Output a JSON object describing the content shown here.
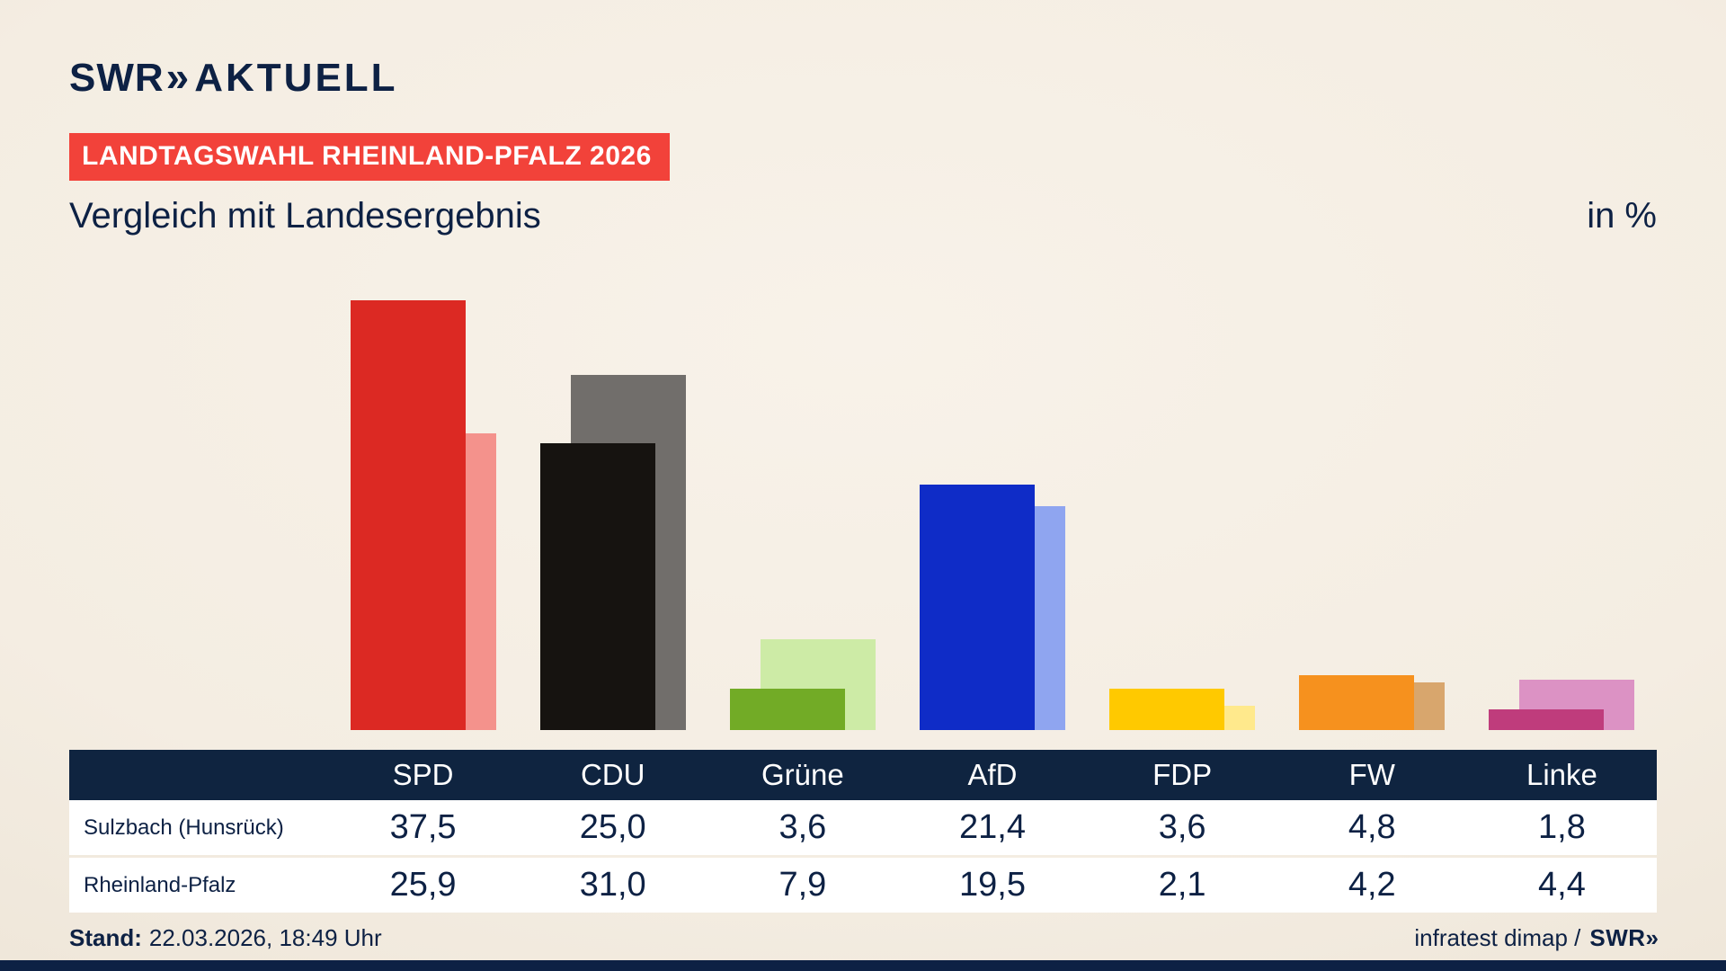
{
  "brand": {
    "logo_swr": "SWR",
    "logo_chevrons": "»",
    "logo_aktuell": "AKTUELL",
    "badge": "LANDTAGSWAHL RHEINLAND-PFALZ 2026"
  },
  "header": {
    "title": "Vergleich mit Landesergebnis",
    "unit_label": "in %"
  },
  "chart_data": {
    "type": "bar",
    "categories": [
      "SPD",
      "CDU",
      "Grüne",
      "AfD",
      "FDP",
      "FW",
      "Linke"
    ],
    "series": [
      {
        "name": "Sulzbach (Hunsrück)",
        "values": [
          37.5,
          25.0,
          3.6,
          21.4,
          3.6,
          4.8,
          1.8
        ]
      },
      {
        "name": "Rheinland-Pfalz",
        "values": [
          25.9,
          31.0,
          7.9,
          19.5,
          2.1,
          4.2,
          4.4
        ]
      }
    ],
    "colors": {
      "front": [
        "#dc2923",
        "#161310",
        "#72ab26",
        "#0f2cc7",
        "#ffc900",
        "#f6911e",
        "#bf3c7c"
      ],
      "back": [
        "#f4928c",
        "#716e6b",
        "#cdeba6",
        "#8fa5f0",
        "#ffe98c",
        "#d8a66d",
        "#dc92c4"
      ]
    },
    "title": "Vergleich mit Landesergebnis",
    "xlabel": "",
    "ylabel": "in %",
    "ylim": [
      0,
      37.5
    ],
    "grid": false,
    "legend_position": "table-below"
  },
  "table": {
    "header": [
      "SPD",
      "CDU",
      "Grüne",
      "AfD",
      "FDP",
      "FW",
      "Linke"
    ],
    "rows": [
      {
        "label": "Sulzbach (Hunsrück)",
        "values": [
          "37,5",
          "25,0",
          "3,6",
          "21,4",
          "3,6",
          "4,8",
          "1,8"
        ]
      },
      {
        "label": "Rheinland-Pfalz",
        "values": [
          "25,9",
          "31,0",
          "7,9",
          "19,5",
          "2,1",
          "4,2",
          "4,4"
        ]
      }
    ]
  },
  "footer": {
    "stand_label": "Stand:",
    "stand_value": "22.03.2026, 18:49 Uhr",
    "source_text": "infratest dimap /",
    "source_logo_swr": "SWR",
    "source_logo_chevrons": "»"
  }
}
